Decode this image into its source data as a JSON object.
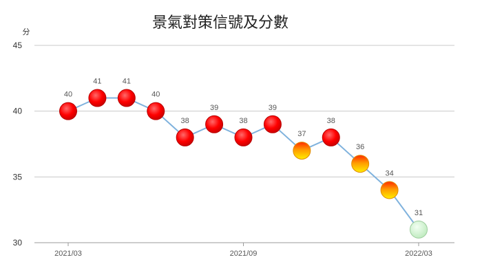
{
  "chart_data": {
    "type": "line",
    "title": "景氣對策信號及分數",
    "ylabel": "分",
    "ylim": [
      30,
      45
    ],
    "yticks": [
      30,
      35,
      40,
      45
    ],
    "grid": true,
    "x_tick_labels": [
      {
        "index": 0,
        "label": "2021/03"
      },
      {
        "index": 6,
        "label": "2021/09"
      },
      {
        "index": 12,
        "label": "2022/03"
      }
    ],
    "series": [
      {
        "values": [
          40,
          41,
          41,
          40,
          38,
          39,
          38,
          39,
          37,
          38,
          36,
          34,
          31
        ],
        "signals": [
          "red",
          "red",
          "red",
          "red",
          "red",
          "red",
          "red",
          "red",
          "yellow-red",
          "red",
          "yellow-red",
          "yellow-red",
          "green"
        ]
      }
    ],
    "colors": {
      "line": "#7fb2dd",
      "red_signal": "#ff0000",
      "yellow_red_signal": "#ffdd00",
      "green_signal": "#c8f0c8"
    }
  }
}
